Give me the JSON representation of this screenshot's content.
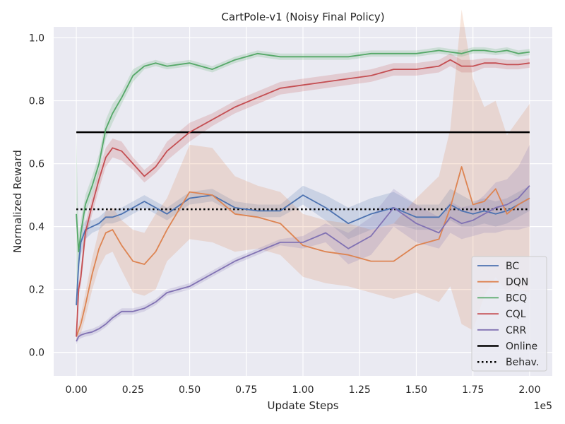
{
  "chart_data": {
    "type": "line",
    "title": "CartPole-v1 (Noisy Final Policy)",
    "xlabel": "Update Steps",
    "ylabel": "Normalized Reward",
    "x_offset_label": "1e5",
    "xlim": [
      -0.1,
      2.1
    ],
    "ylim": [
      -0.075,
      1.035
    ],
    "xticks": [
      0.0,
      0.25,
      0.5,
      0.75,
      1.0,
      1.25,
      1.5,
      1.75,
      2.0
    ],
    "xtick_labels": [
      "0.00",
      "0.25",
      "0.50",
      "0.75",
      "1.00",
      "1.25",
      "1.50",
      "1.75",
      "2.00"
    ],
    "yticks": [
      0.0,
      0.2,
      0.4,
      0.6,
      0.8,
      1.0
    ],
    "ytick_labels": [
      "0.0",
      "0.2",
      "0.4",
      "0.6",
      "0.8",
      "1.0"
    ],
    "grid": true,
    "legend_position": "lower-right",
    "x": [
      0.0,
      0.01,
      0.02,
      0.04,
      0.07,
      0.1,
      0.13,
      0.16,
      0.2,
      0.25,
      0.3,
      0.35,
      0.4,
      0.5,
      0.6,
      0.7,
      0.8,
      0.9,
      1.0,
      1.1,
      1.2,
      1.3,
      1.4,
      1.5,
      1.6,
      1.65,
      1.7,
      1.75,
      1.8,
      1.85,
      1.9,
      1.95,
      2.0
    ],
    "series": [
      {
        "name": "BC",
        "color": "#4c72b0",
        "values": [
          0.15,
          0.28,
          0.35,
          0.39,
          0.4,
          0.41,
          0.43,
          0.43,
          0.44,
          0.46,
          0.48,
          0.46,
          0.44,
          0.49,
          0.5,
          0.46,
          0.45,
          0.45,
          0.5,
          0.46,
          0.41,
          0.44,
          0.46,
          0.43,
          0.43,
          0.47,
          0.45,
          0.44,
          0.45,
          0.44,
          0.45,
          0.47,
          0.49
        ],
        "band": [
          0.03,
          0.04,
          0.04,
          0.03,
          0.02,
          0.02,
          0.02,
          0.02,
          0.02,
          0.02,
          0.02,
          0.02,
          0.02,
          0.02,
          0.02,
          0.02,
          0.02,
          0.02,
          0.03,
          0.04,
          0.05,
          0.05,
          0.05,
          0.04,
          0.04,
          0.05,
          0.05,
          0.04,
          0.04,
          0.04,
          0.04,
          0.04,
          0.04
        ]
      },
      {
        "name": "DQN",
        "color": "#dd8452",
        "values": [
          0.05,
          0.07,
          0.09,
          0.15,
          0.25,
          0.33,
          0.38,
          0.39,
          0.34,
          0.29,
          0.28,
          0.32,
          0.39,
          0.51,
          0.5,
          0.44,
          0.43,
          0.41,
          0.34,
          0.32,
          0.31,
          0.29,
          0.29,
          0.34,
          0.36,
          0.46,
          0.59,
          0.47,
          0.48,
          0.52,
          0.44,
          0.47,
          0.49
        ],
        "band": [
          0.01,
          0.02,
          0.03,
          0.04,
          0.05,
          0.06,
          0.07,
          0.07,
          0.08,
          0.1,
          0.1,
          0.12,
          0.1,
          0.15,
          0.15,
          0.12,
          0.1,
          0.1,
          0.1,
          0.1,
          0.1,
          0.1,
          0.12,
          0.15,
          0.2,
          0.25,
          0.5,
          0.4,
          0.3,
          0.28,
          0.25,
          0.27,
          0.3
        ]
      },
      {
        "name": "BCQ",
        "color": "#55a868",
        "values": [
          0.44,
          0.32,
          0.38,
          0.47,
          0.53,
          0.6,
          0.71,
          0.76,
          0.81,
          0.88,
          0.91,
          0.92,
          0.91,
          0.92,
          0.9,
          0.93,
          0.95,
          0.94,
          0.94,
          0.94,
          0.94,
          0.95,
          0.95,
          0.95,
          0.96,
          0.955,
          0.95,
          0.96,
          0.96,
          0.955,
          0.96,
          0.95,
          0.955
        ],
        "band": [
          0.25,
          0.05,
          0.04,
          0.03,
          0.03,
          0.03,
          0.03,
          0.03,
          0.02,
          0.02,
          0.01,
          0.01,
          0.01,
          0.01,
          0.01,
          0.01,
          0.01,
          0.01,
          0.01,
          0.01,
          0.01,
          0.01,
          0.01,
          0.01,
          0.01,
          0.01,
          0.01,
          0.01,
          0.01,
          0.01,
          0.01,
          0.01,
          0.01
        ]
      },
      {
        "name": "CQL",
        "color": "#c44e52",
        "values": [
          0.05,
          0.2,
          0.24,
          0.38,
          0.47,
          0.55,
          0.62,
          0.65,
          0.64,
          0.6,
          0.56,
          0.59,
          0.64,
          0.7,
          0.74,
          0.78,
          0.81,
          0.84,
          0.85,
          0.86,
          0.87,
          0.88,
          0.9,
          0.9,
          0.91,
          0.93,
          0.91,
          0.91,
          0.92,
          0.92,
          0.915,
          0.915,
          0.92
        ],
        "band": [
          0.01,
          0.02,
          0.03,
          0.03,
          0.03,
          0.03,
          0.03,
          0.03,
          0.03,
          0.02,
          0.02,
          0.02,
          0.03,
          0.03,
          0.02,
          0.02,
          0.02,
          0.02,
          0.02,
          0.02,
          0.02,
          0.02,
          0.02,
          0.02,
          0.02,
          0.02,
          0.02,
          0.02,
          0.015,
          0.015,
          0.015,
          0.015,
          0.015
        ]
      },
      {
        "name": "CRR",
        "color": "#8172b3",
        "values": [
          0.035,
          0.05,
          0.055,
          0.06,
          0.065,
          0.075,
          0.09,
          0.11,
          0.13,
          0.13,
          0.14,
          0.16,
          0.19,
          0.21,
          0.25,
          0.29,
          0.32,
          0.35,
          0.35,
          0.38,
          0.33,
          0.37,
          0.46,
          0.41,
          0.38,
          0.43,
          0.41,
          0.42,
          0.44,
          0.46,
          0.47,
          0.49,
          0.53
        ],
        "band": [
          0.01,
          0.01,
          0.01,
          0.01,
          0.01,
          0.01,
          0.01,
          0.01,
          0.01,
          0.01,
          0.01,
          0.01,
          0.01,
          0.01,
          0.01,
          0.01,
          0.01,
          0.01,
          0.02,
          0.03,
          0.05,
          0.06,
          0.06,
          0.06,
          0.05,
          0.05,
          0.05,
          0.05,
          0.06,
          0.08,
          0.08,
          0.1,
          0.13
        ]
      }
    ],
    "reference_lines": [
      {
        "name": "Online",
        "y": 0.7,
        "x_range": [
          0.0,
          2.0
        ],
        "color": "#000000",
        "style": "solid"
      },
      {
        "name": "Behav.",
        "y": 0.455,
        "x_range": [
          0.0,
          2.0
        ],
        "color": "#000000",
        "style": "dotted"
      }
    ]
  }
}
